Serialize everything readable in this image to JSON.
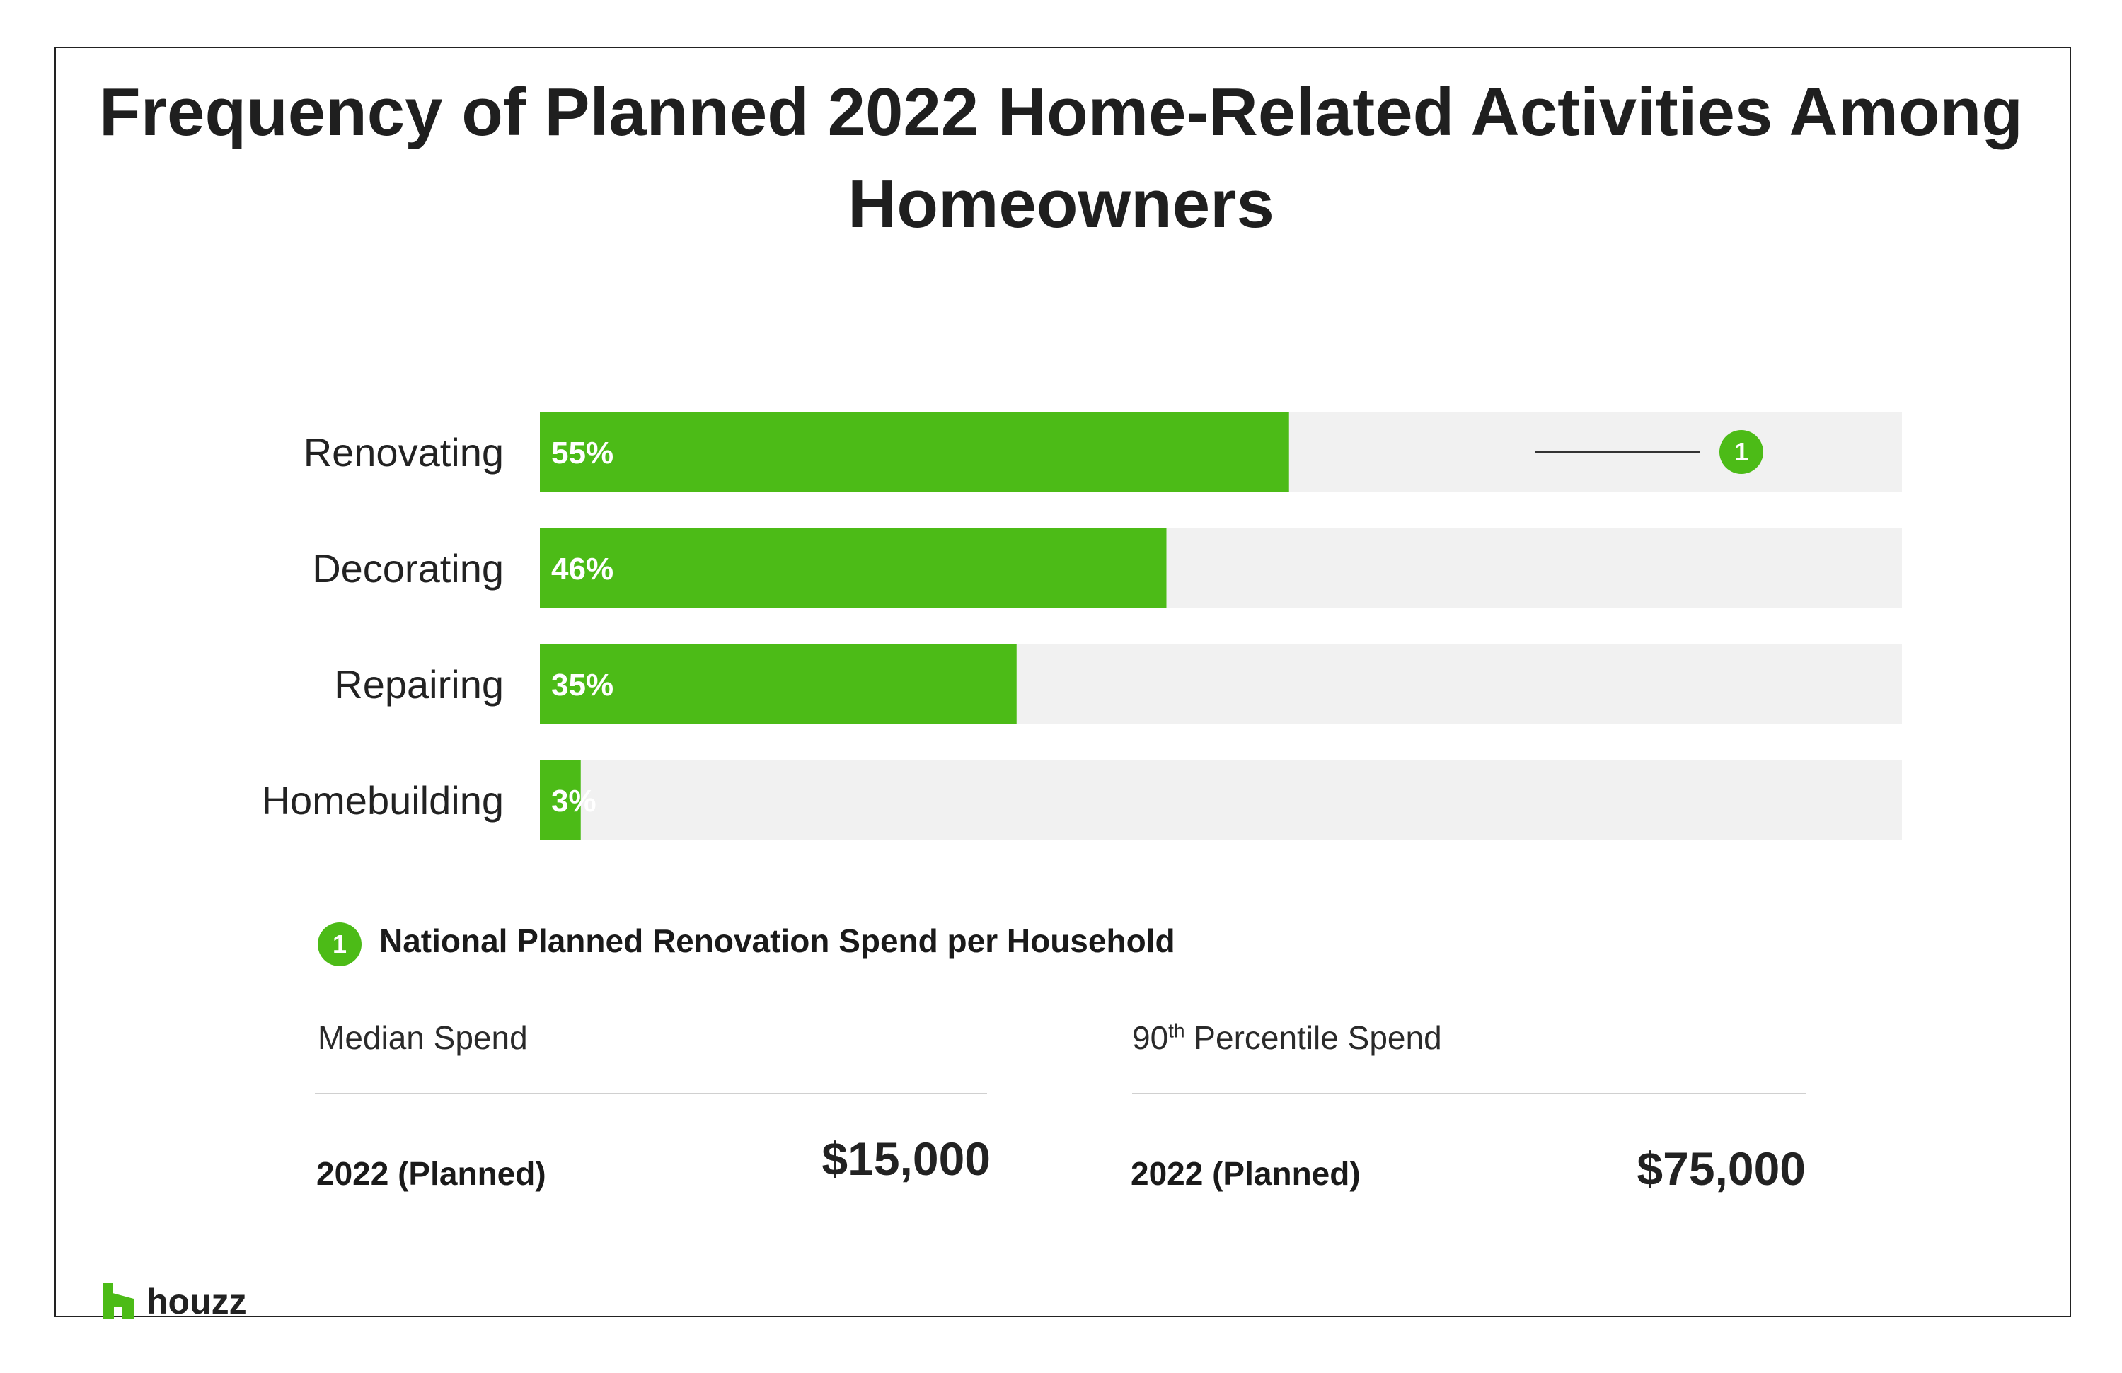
{
  "colors": {
    "accent": "#4cbb17",
    "track": "#f1f1f1",
    "text": "#222222"
  },
  "chart_data": {
    "type": "bar",
    "orientation": "horizontal",
    "title": "Frequency of Planned 2022 Home-Related Activities Among Homeowners",
    "categories": [
      "Renovating",
      "Decorating",
      "Repairing",
      "Homebuilding"
    ],
    "values": [
      55,
      46,
      35,
      3
    ],
    "value_labels": [
      "55%",
      "46%",
      "35%",
      "3%"
    ],
    "xlim": [
      0,
      100
    ],
    "grid": false,
    "annotation": {
      "category": "Renovating",
      "marker": "1"
    }
  },
  "legend": {
    "marker": "1",
    "title": "National Planned Renovation Spend per Household",
    "columns": [
      {
        "heading": "Median Spend",
        "row_label": "2022 (Planned)",
        "value": "$15,000"
      },
      {
        "heading_number": "90",
        "heading_superscript": "th",
        "heading_rest": " Percentile Spend",
        "row_label": "2022 (Planned)",
        "value": "$75,000"
      }
    ]
  },
  "brand": {
    "name": "houzz",
    "icon": "houzz-house-icon"
  }
}
